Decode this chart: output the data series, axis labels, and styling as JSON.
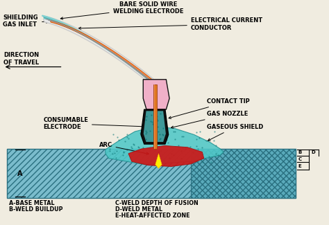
{
  "bg_color": "#f0ece0",
  "colors": {
    "base_metal_fill": "#7abccc",
    "weld_pool_fill": "#50c8c8",
    "arc_yellow": "#ffee00",
    "electrode_orange": "#e07820",
    "nozzle_pink": "#f0b0c8",
    "nozzle_dark": "#111111",
    "wire_teal1": "#60b8b8",
    "wire_teal2": "#40a0a0",
    "wire_white": "#d8d8d8",
    "wire_gray": "#b0b0b0",
    "wire_orange": "#cc5500",
    "molten_red": "#cc1818",
    "dot_hatch": "#208888",
    "bg": "#f0ece0",
    "right_zone": "#5aaabb"
  },
  "labels": {
    "shielding": "SHIELDING\nGAS INLET",
    "bare_wire": "BARE SOLID WIRE\nWELDING ELECTRODE",
    "elec_current": "ELECTRICAL CURRENT\nCONDUCTOR",
    "direction": "DIRECTION\nOF TRAVEL",
    "consumable": "CONSUMABLE\nELECTRODE",
    "arc": "ARC",
    "contact_tip": "CONTACT TIP",
    "gas_nozzle": "GAS NOZZLE",
    "gaseous_shield": "GASEOUS SHIELD",
    "A": "A",
    "B": "B",
    "C": "C",
    "D": "D",
    "E": "E",
    "legend1a": "A-BASE METAL",
    "legend1b": "C-WELD DEPTH OF FUSION",
    "legend2a": "B-WELD BUILDUP",
    "legend2b": "D-WELD METAL",
    "legend3b": "E-HEAT-AFFECTED ZONE"
  }
}
